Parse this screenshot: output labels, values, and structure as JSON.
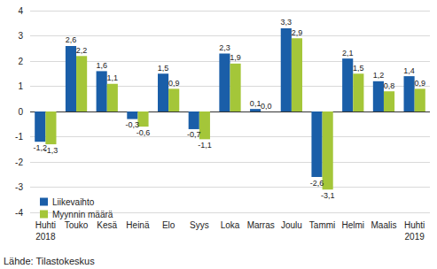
{
  "chart_data": {
    "type": "bar",
    "categories": [
      "Huhti\n2018",
      "Touko",
      "Kesä",
      "Heinä",
      "Elo",
      "Syys",
      "Loka",
      "Marras",
      "Joulu",
      "Tammi",
      "Helmi",
      "Maalis",
      "Huhti\n2019"
    ],
    "series": [
      {
        "name": "Liikevaihto",
        "color": "#1a5ea8",
        "values": [
          -1.2,
          2.6,
          1.6,
          -0.3,
          1.5,
          -0.7,
          2.3,
          0.1,
          3.3,
          -2.6,
          2.1,
          1.2,
          1.4
        ],
        "value_labels": [
          "-1,2",
          "2,6",
          "1,6",
          "-0,3",
          "1,5",
          "-0,7",
          "2,3",
          "0,1",
          "3,3",
          "-2,6",
          "2,1",
          "1,2",
          "1,4"
        ]
      },
      {
        "name": "Myynnin määrä",
        "color": "#a4c639",
        "values": [
          -1.3,
          2.2,
          1.1,
          -0.6,
          0.9,
          -1.1,
          1.9,
          0.0,
          2.9,
          -3.1,
          1.5,
          0.8,
          0.9
        ],
        "value_labels": [
          "-1,3",
          "2,2",
          "1,1",
          "-0,6",
          "0,9",
          "-1,1",
          "1,9",
          "0,0",
          "2,9",
          "-3,1",
          "1,5",
          "0,8",
          "0,9"
        ]
      }
    ],
    "ylim": [
      -4,
      4
    ],
    "yticks": [
      -4,
      -3,
      -2,
      -1,
      0,
      1,
      2,
      3,
      4
    ],
    "grid": true,
    "legend": "lower left",
    "data_labels": true,
    "annotations": [
      "Lähde: Tilastokeskus"
    ]
  }
}
